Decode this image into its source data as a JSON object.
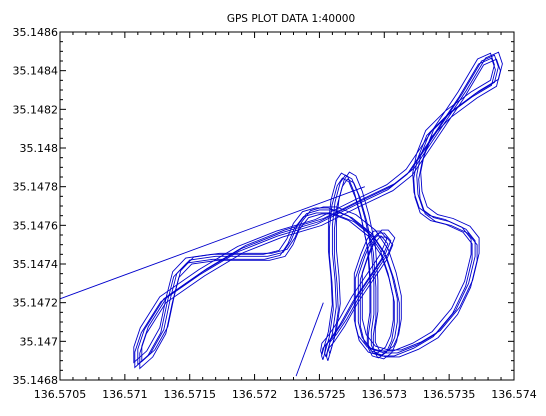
{
  "chart_data": {
    "type": "line",
    "title": "GPS PLOT DATA 1:40000",
    "xlabel": "",
    "ylabel": "",
    "xlim": [
      136.5705,
      136.574
    ],
    "ylim": [
      35.1468,
      35.1486
    ],
    "x_ticks": [
      "136.5705",
      "136.571",
      "136.5715",
      "136.572",
      "136.5725",
      "136.573",
      "136.5735",
      "136.574"
    ],
    "y_ticks": [
      "35.1468",
      "35.147",
      "35.1472",
      "35.1474",
      "35.1476",
      "35.1478",
      "35.148",
      "35.1482",
      "35.1484",
      "35.1486"
    ],
    "grid": false,
    "line_color": "#0000cc",
    "series": [
      {
        "x": [
          136.57255,
          136.5726,
          136.57263,
          136.57262,
          136.5726,
          136.5726,
          136.57262,
          136.57266,
          136.5727,
          136.57275,
          136.5728,
          136.57285,
          136.5729,
          136.57292,
          136.57292,
          136.5729,
          136.5729,
          136.57293,
          136.57298,
          136.57304,
          136.57308,
          136.5731,
          136.5731,
          136.57306,
          136.573,
          136.5729,
          136.57275,
          136.5726,
          136.5725,
          136.5724,
          136.57233,
          136.57228,
          136.57222,
          136.5721,
          136.5719,
          136.5717,
          136.5715,
          136.5714,
          136.57135,
          136.5713,
          136.5712,
          136.5711,
          136.5711,
          136.57115,
          136.5713,
          136.5716,
          136.5719,
          136.5722,
          136.5725,
          136.5728,
          136.57305,
          136.5732,
          136.5734,
          136.5736,
          136.57375,
          136.57385,
          136.57388,
          136.57385,
          136.5737,
          136.5735,
          136.57335,
          136.57328,
          136.57325,
          136.57326,
          136.5733,
          136.57338,
          136.5735,
          136.57363,
          136.5737,
          136.5737,
          136.57365,
          136.57355,
          136.5734,
          136.57325,
          136.5731,
          136.573,
          136.5729,
          136.57283,
          136.5728,
          136.5728,
          136.5728,
          136.57285,
          136.5729,
          136.57295,
          136.573,
          136.57305,
          136.573,
          136.5729,
          136.57278,
          136.57268,
          136.5726,
          136.57255,
          136.57254,
          136.57255
        ],
        "y": [
          35.14692,
          35.14704,
          35.14718,
          35.14732,
          35.14746,
          35.1476,
          35.14772,
          35.14782,
          35.14786,
          35.14784,
          35.14776,
          35.14764,
          35.14748,
          35.1473,
          35.14714,
          35.14705,
          35.14698,
          35.14694,
          35.14693,
          35.14696,
          35.14702,
          35.1471,
          35.14722,
          35.14734,
          35.14746,
          35.14756,
          35.14764,
          35.14768,
          35.14768,
          35.14766,
          35.1476,
          35.14752,
          35.14746,
          35.14744,
          35.14744,
          35.14744,
          35.14742,
          35.14735,
          35.14722,
          35.14706,
          35.14694,
          35.14688,
          35.14696,
          35.14706,
          35.14722,
          35.14736,
          35.14748,
          35.14756,
          35.14762,
          35.14772,
          35.1478,
          35.14788,
          35.14808,
          35.14828,
          35.14845,
          35.14848,
          35.14842,
          35.14834,
          35.14828,
          35.14818,
          35.14808,
          35.14796,
          35.14786,
          35.14776,
          35.14768,
          35.14764,
          35.14762,
          35.14758,
          35.14752,
          35.14744,
          35.1473,
          35.14716,
          35.14704,
          35.14698,
          35.14694,
          35.14694,
          35.14696,
          35.14702,
          35.1471,
          35.14722,
          35.14734,
          35.14744,
          35.14752,
          35.14756,
          35.14756,
          35.14752,
          35.14744,
          35.14734,
          35.14722,
          35.1471,
          35.14702,
          35.14698,
          35.14694,
          35.14692
        ]
      }
    ],
    "extra_lines": [
      {
        "x": [
          136.5705,
          136.57285
        ],
        "y": [
          35.14722,
          35.1478
        ]
      },
      {
        "x": [
          136.57253,
          136.57232
        ],
        "y": [
          35.1472,
          35.14682
        ]
      }
    ]
  }
}
